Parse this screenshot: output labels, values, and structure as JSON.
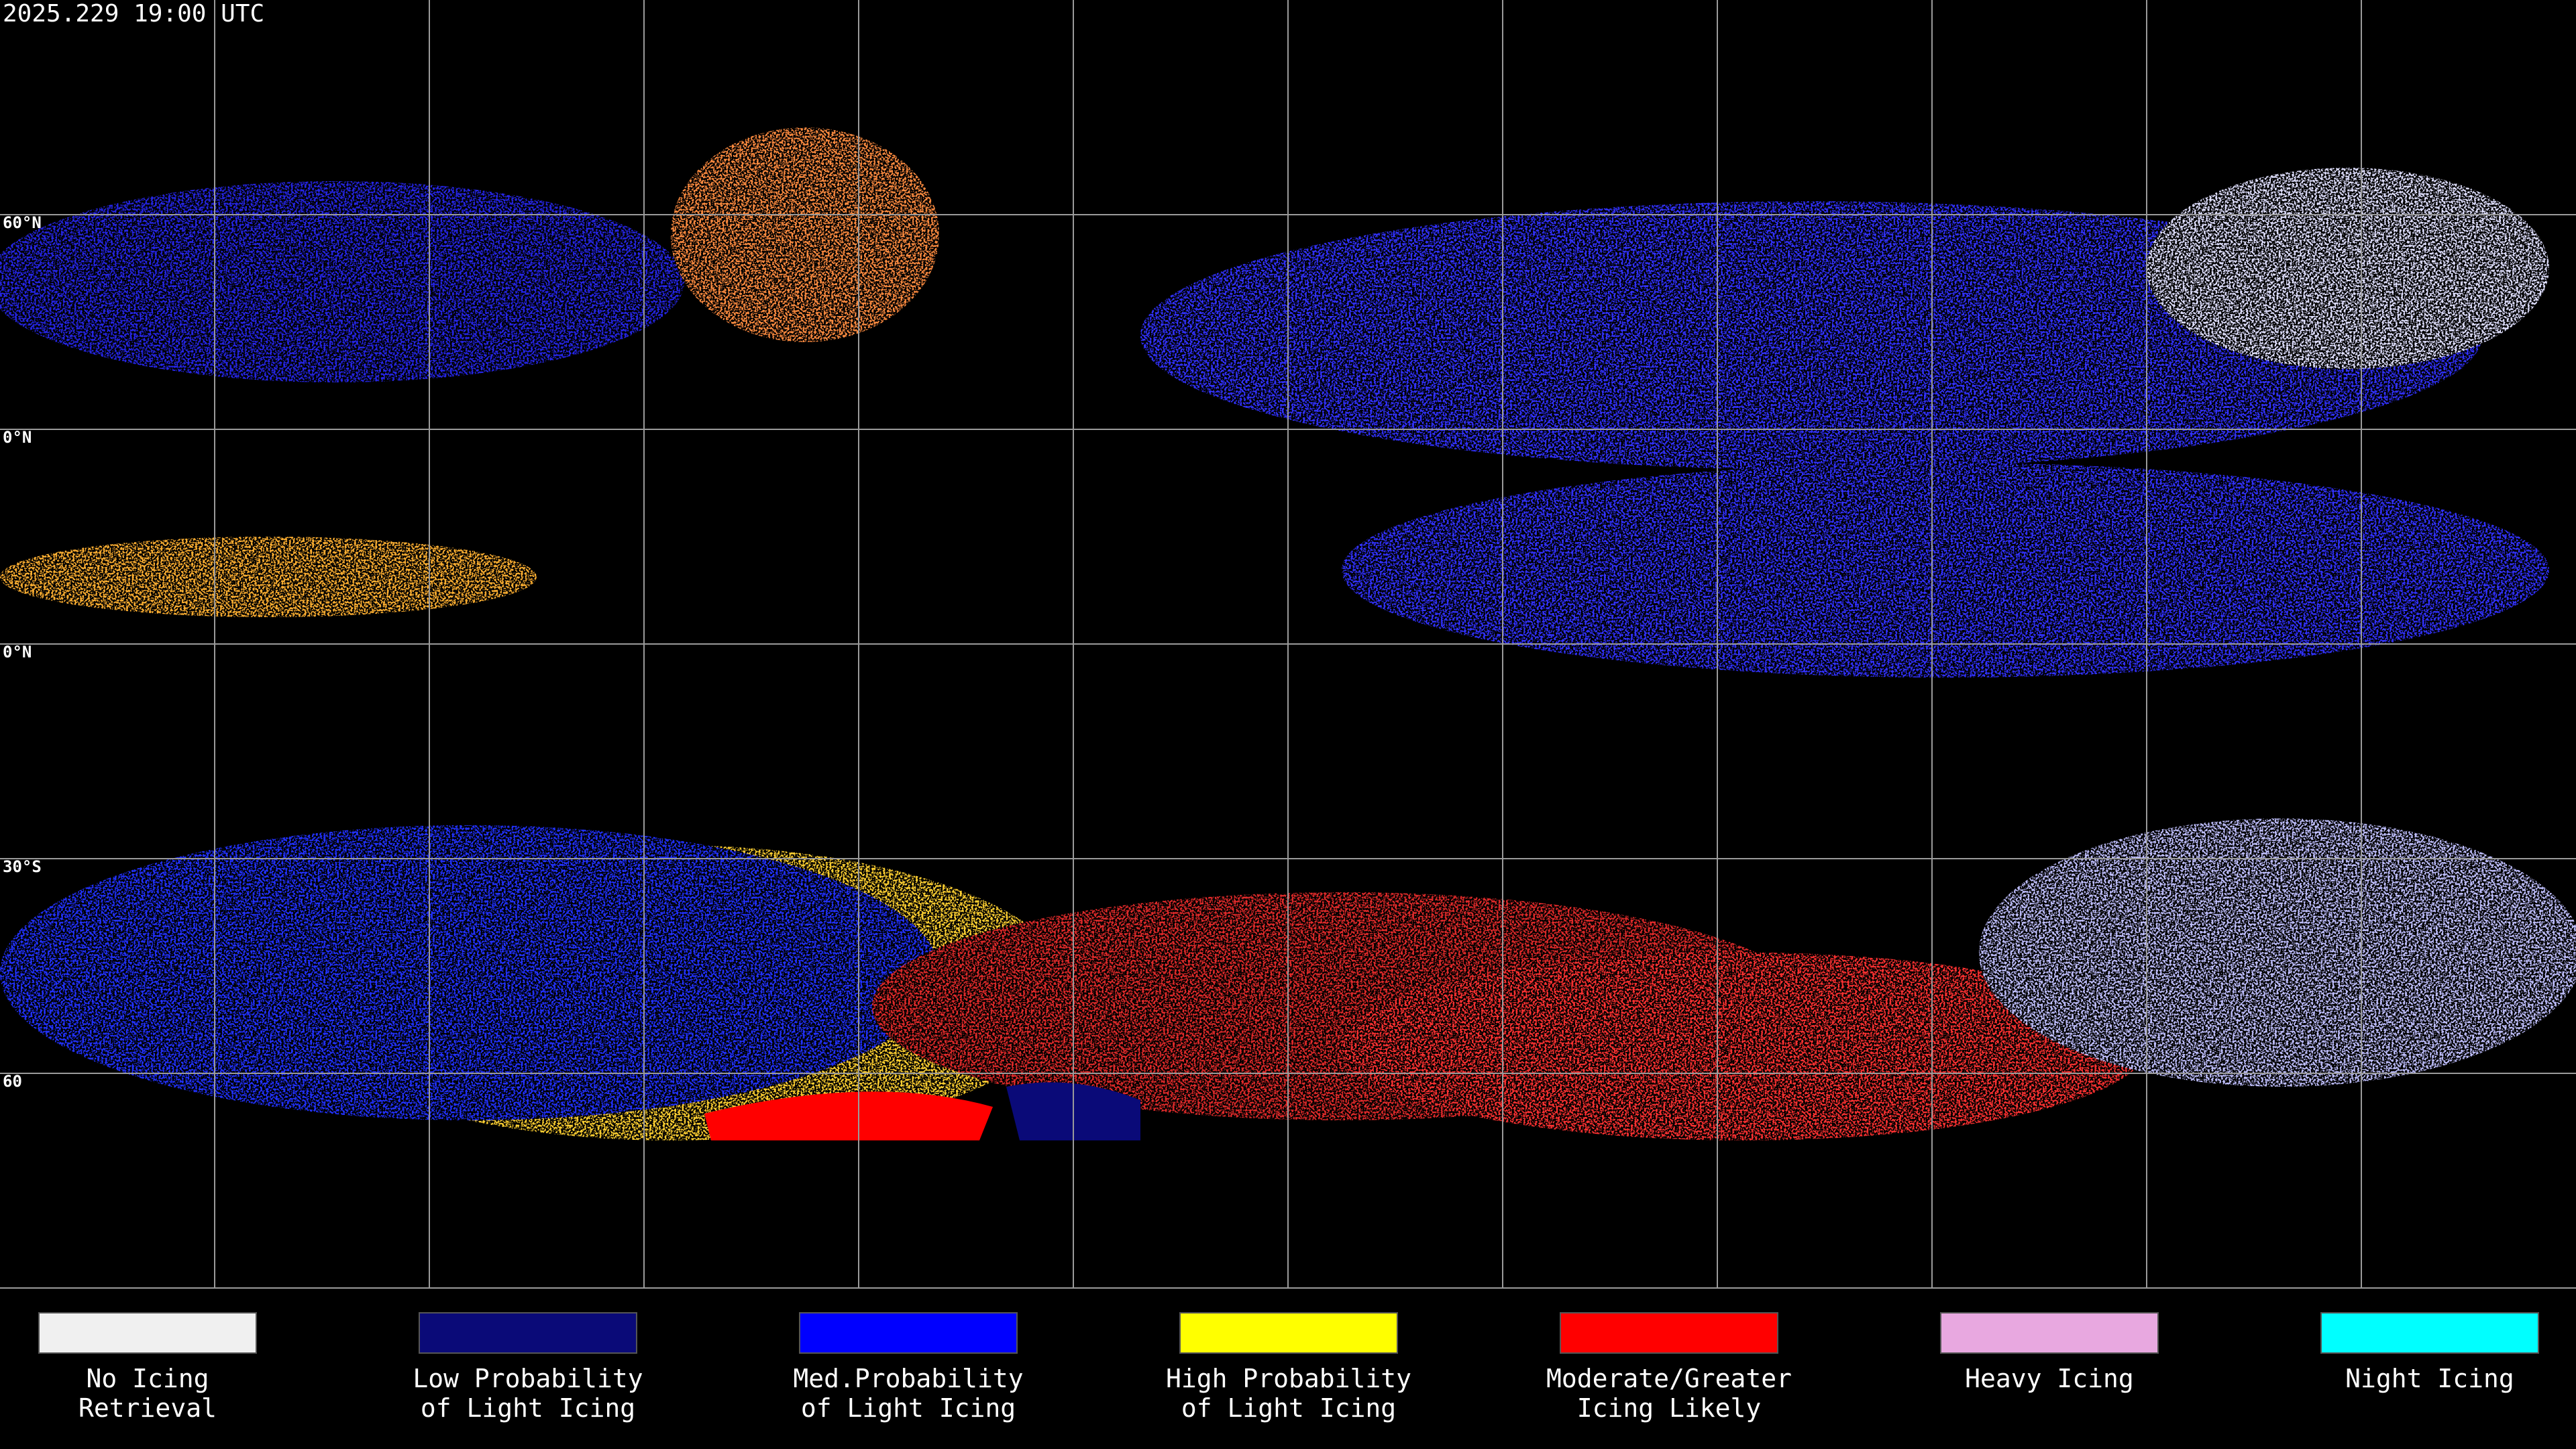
{
  "header": {
    "title": "2025.229 19:00 UTC"
  },
  "lat_labels": [
    "60°N",
    "0°N",
    "0°N",
    "30°S",
    "60"
  ],
  "legend": [
    {
      "color": "#f0f0f0",
      "label": [
        "No Icing",
        "Retrieval"
      ]
    },
    {
      "color": "#0a0a78",
      "label": [
        "Low Probability",
        "of Light Icing"
      ]
    },
    {
      "color": "#0000ff",
      "label": [
        "Med.Probability",
        "of Light Icing"
      ]
    },
    {
      "color": "#ffff00",
      "label": [
        "High Probability",
        "of Light Icing"
      ]
    },
    {
      "color": "#ff0000",
      "label": [
        "Moderate/Greater",
        "Icing Likely"
      ]
    },
    {
      "color": "#e8a8e0",
      "label": [
        "Heavy Icing"
      ]
    },
    {
      "color": "#00ffff",
      "label": [
        "Night Icing"
      ]
    }
  ]
}
